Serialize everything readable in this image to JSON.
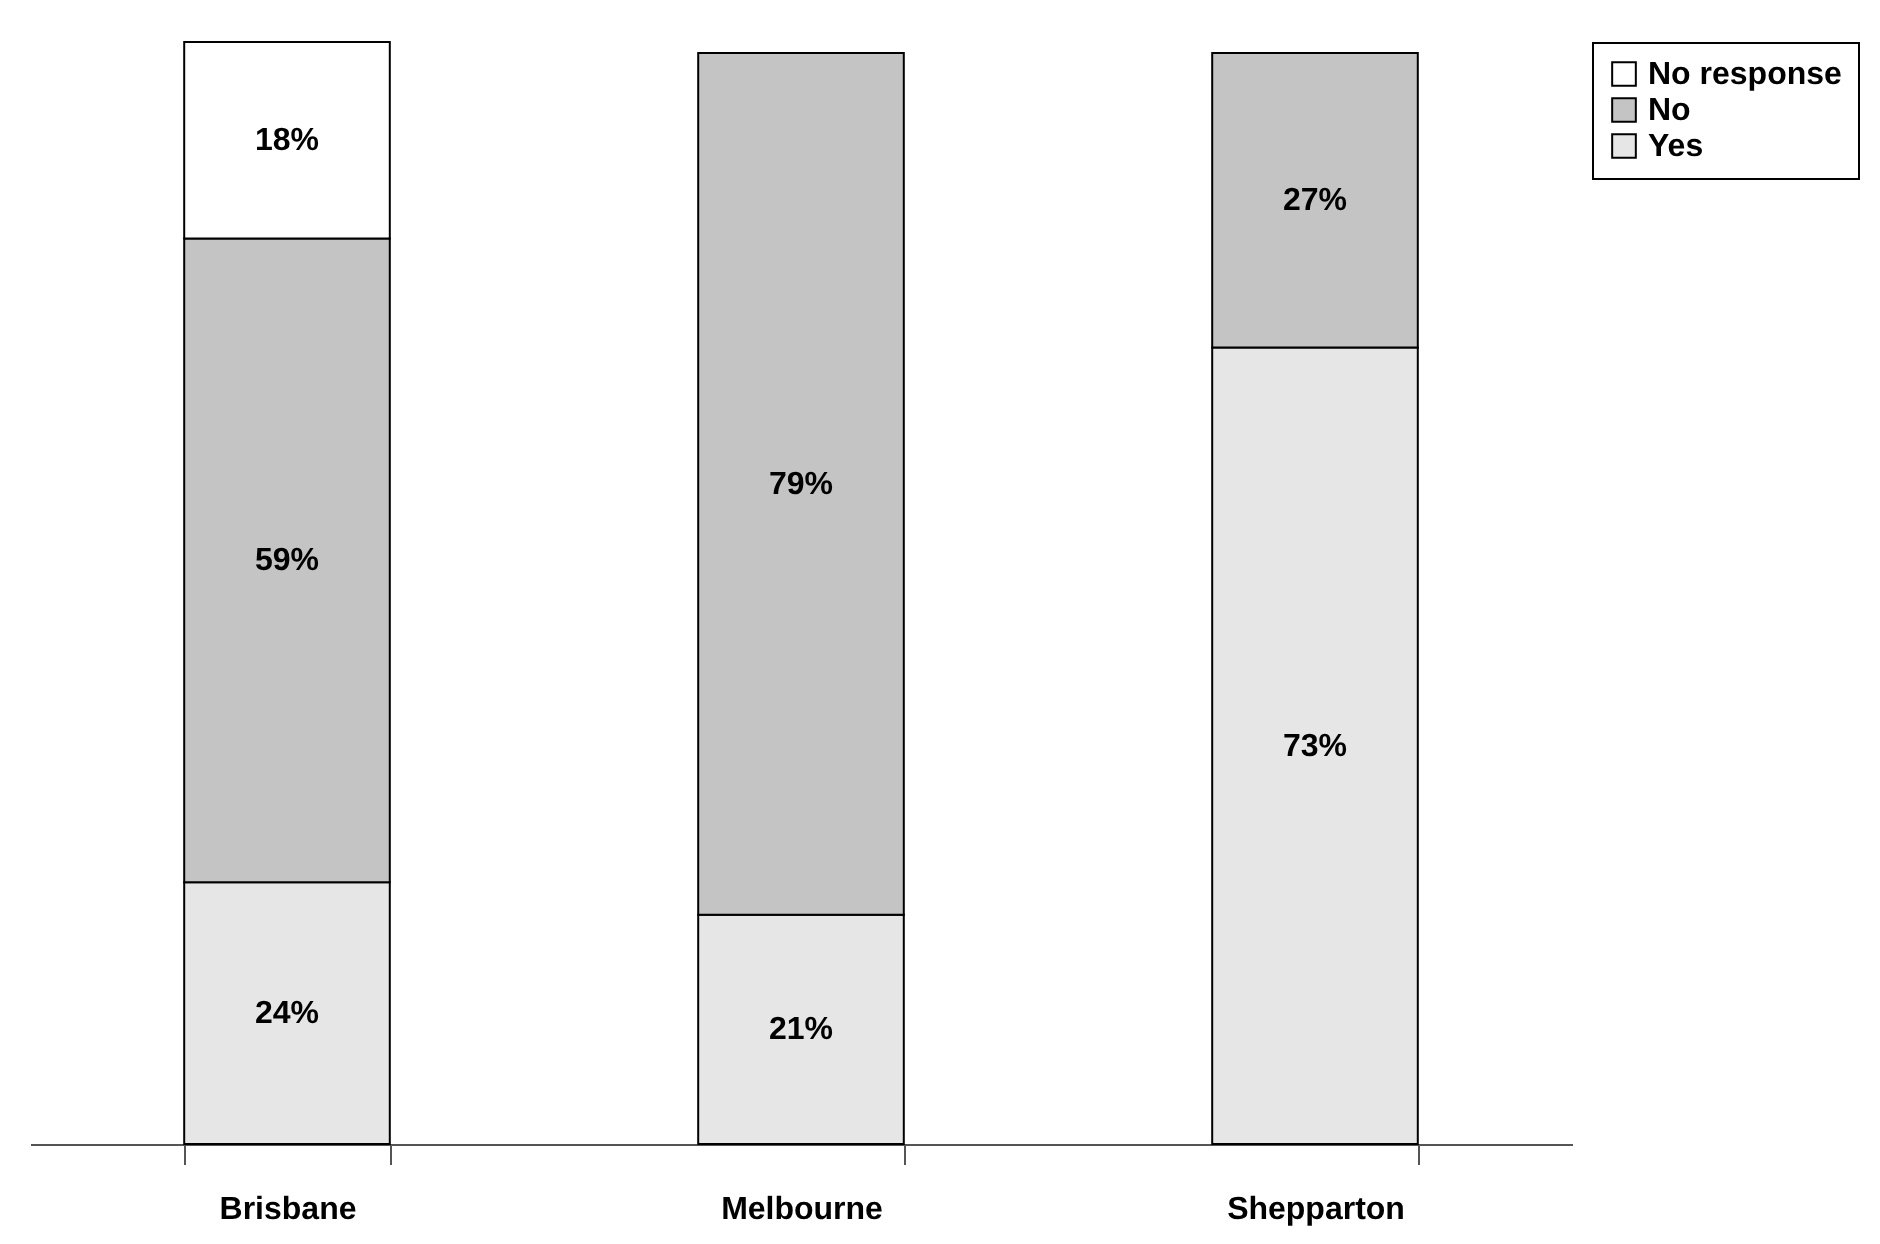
{
  "chart_data": {
    "type": "bar",
    "stacked": true,
    "categories": [
      "Brisbane",
      "Melbourne",
      "Shepparton"
    ],
    "tick_labels": "x",
    "legend": "right",
    "grid": false,
    "series": [
      {
        "name": "Yes",
        "color": "#e6e6e6",
        "values": [
          24,
          21,
          73
        ],
        "value_labels": [
          "24%",
          "21%",
          "73%"
        ]
      },
      {
        "name": "No",
        "color": "#c4c4c4",
        "values": [
          59,
          79,
          27
        ],
        "value_labels": [
          "59%",
          "79%",
          "27%"
        ]
      },
      {
        "name": "No response",
        "color": "#ffffff",
        "values": [
          18,
          null,
          null
        ],
        "value_labels": [
          "18%",
          null,
          null
        ]
      }
    ]
  }
}
